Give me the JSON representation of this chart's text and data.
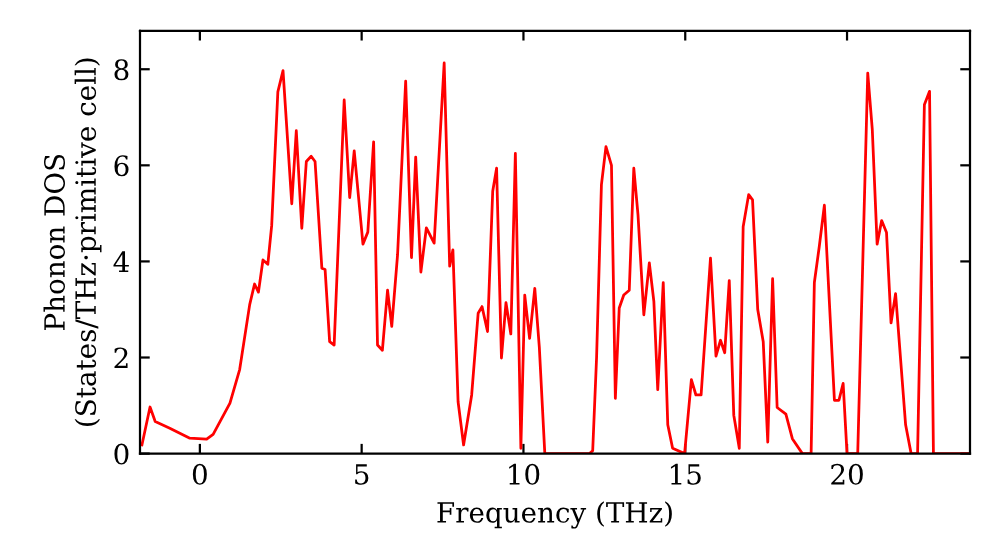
{
  "chart_data": {
    "type": "line",
    "xlabel": "Frequency (THz)",
    "ylabel": "Phonon DOS\n(States/THz·primitive cell)",
    "xlim": [
      -1.85,
      23.8
    ],
    "ylim": [
      0,
      8.8
    ],
    "xticks": [
      0,
      5,
      10,
      15,
      20
    ],
    "yticks": [
      0,
      2,
      4,
      6,
      8
    ],
    "grid": false,
    "series": [
      {
        "color": "#ff0000",
        "x": [
          -1.79,
          -1.54,
          -1.38,
          -0.93,
          -0.31,
          0.21,
          0.41,
          0.93,
          1.23,
          1.54,
          1.69,
          1.81,
          1.95,
          2.1,
          2.22,
          2.41,
          2.57,
          2.84,
          2.98,
          3.15,
          3.29,
          3.44,
          3.56,
          3.77,
          3.87,
          4.01,
          4.15,
          4.46,
          4.63,
          4.77,
          5.04,
          5.19,
          5.37,
          5.49,
          5.64,
          5.8,
          5.93,
          6.11,
          6.36,
          6.54,
          6.67,
          6.83,
          7.0,
          7.24,
          7.55,
          7.72,
          7.82,
          7.98,
          8.15,
          8.4,
          8.6,
          8.72,
          8.89,
          9.05,
          9.17,
          9.32,
          9.46,
          9.61,
          9.75,
          9.92,
          10.04,
          10.19,
          10.35,
          10.49,
          10.66,
          12.04,
          12.14,
          12.26,
          12.41,
          12.55,
          12.72,
          12.84,
          12.96,
          13.1,
          13.27,
          13.41,
          13.54,
          13.72,
          13.89,
          14.03,
          14.15,
          14.32,
          14.46,
          14.61,
          14.98,
          15.19,
          15.33,
          15.49,
          15.78,
          15.95,
          16.09,
          16.22,
          16.36,
          16.5,
          16.67,
          16.79,
          16.96,
          17.08,
          17.24,
          17.41,
          17.55,
          17.7,
          17.84,
          18.11,
          18.31,
          18.62,
          18.89,
          18.99,
          19.14,
          19.3,
          19.61,
          19.75,
          19.88,
          20.0,
          20.33,
          20.64,
          20.78,
          20.93,
          21.07,
          21.22,
          21.36,
          21.5,
          21.81,
          21.98,
          22.18,
          22.39,
          22.55,
          22.67,
          23.77
        ],
        "values": [
          0.18,
          0.97,
          0.67,
          0.53,
          0.32,
          0.3,
          0.4,
          1.05,
          1.75,
          3.1,
          3.53,
          3.36,
          4.03,
          3.94,
          4.75,
          7.53,
          7.97,
          5.2,
          6.72,
          4.69,
          6.08,
          6.19,
          6.08,
          3.86,
          3.83,
          2.33,
          2.26,
          7.36,
          5.33,
          6.3,
          4.36,
          4.61,
          6.49,
          2.26,
          2.15,
          3.4,
          2.65,
          4.14,
          7.75,
          4.08,
          6.17,
          3.78,
          4.7,
          4.38,
          8.13,
          3.9,
          4.24,
          1.08,
          0.18,
          1.22,
          2.92,
          3.06,
          2.54,
          5.46,
          5.94,
          1.99,
          3.14,
          2.49,
          6.25,
          0.11,
          3.3,
          2.4,
          3.44,
          2.22,
          0,
          0,
          0.06,
          2.0,
          5.6,
          6.39,
          6.0,
          1.15,
          3.03,
          3.3,
          3.4,
          5.94,
          4.97,
          2.89,
          3.97,
          3.17,
          1.33,
          3.56,
          0.6,
          0.11,
          0,
          1.54,
          1.22,
          1.22,
          4.07,
          2.03,
          2.36,
          2.1,
          3.6,
          0.8,
          0.11,
          4.72,
          5.39,
          5.28,
          3.0,
          2.33,
          0.24,
          3.64,
          0.96,
          0.82,
          0.31,
          0,
          0,
          3.56,
          4.3,
          5.17,
          1.11,
          1.11,
          1.46,
          0,
          0,
          7.92,
          6.75,
          4.36,
          4.85,
          4.6,
          2.72,
          3.33,
          0.6,
          0,
          0,
          7.26,
          7.54,
          0,
          0
        ]
      }
    ]
  }
}
